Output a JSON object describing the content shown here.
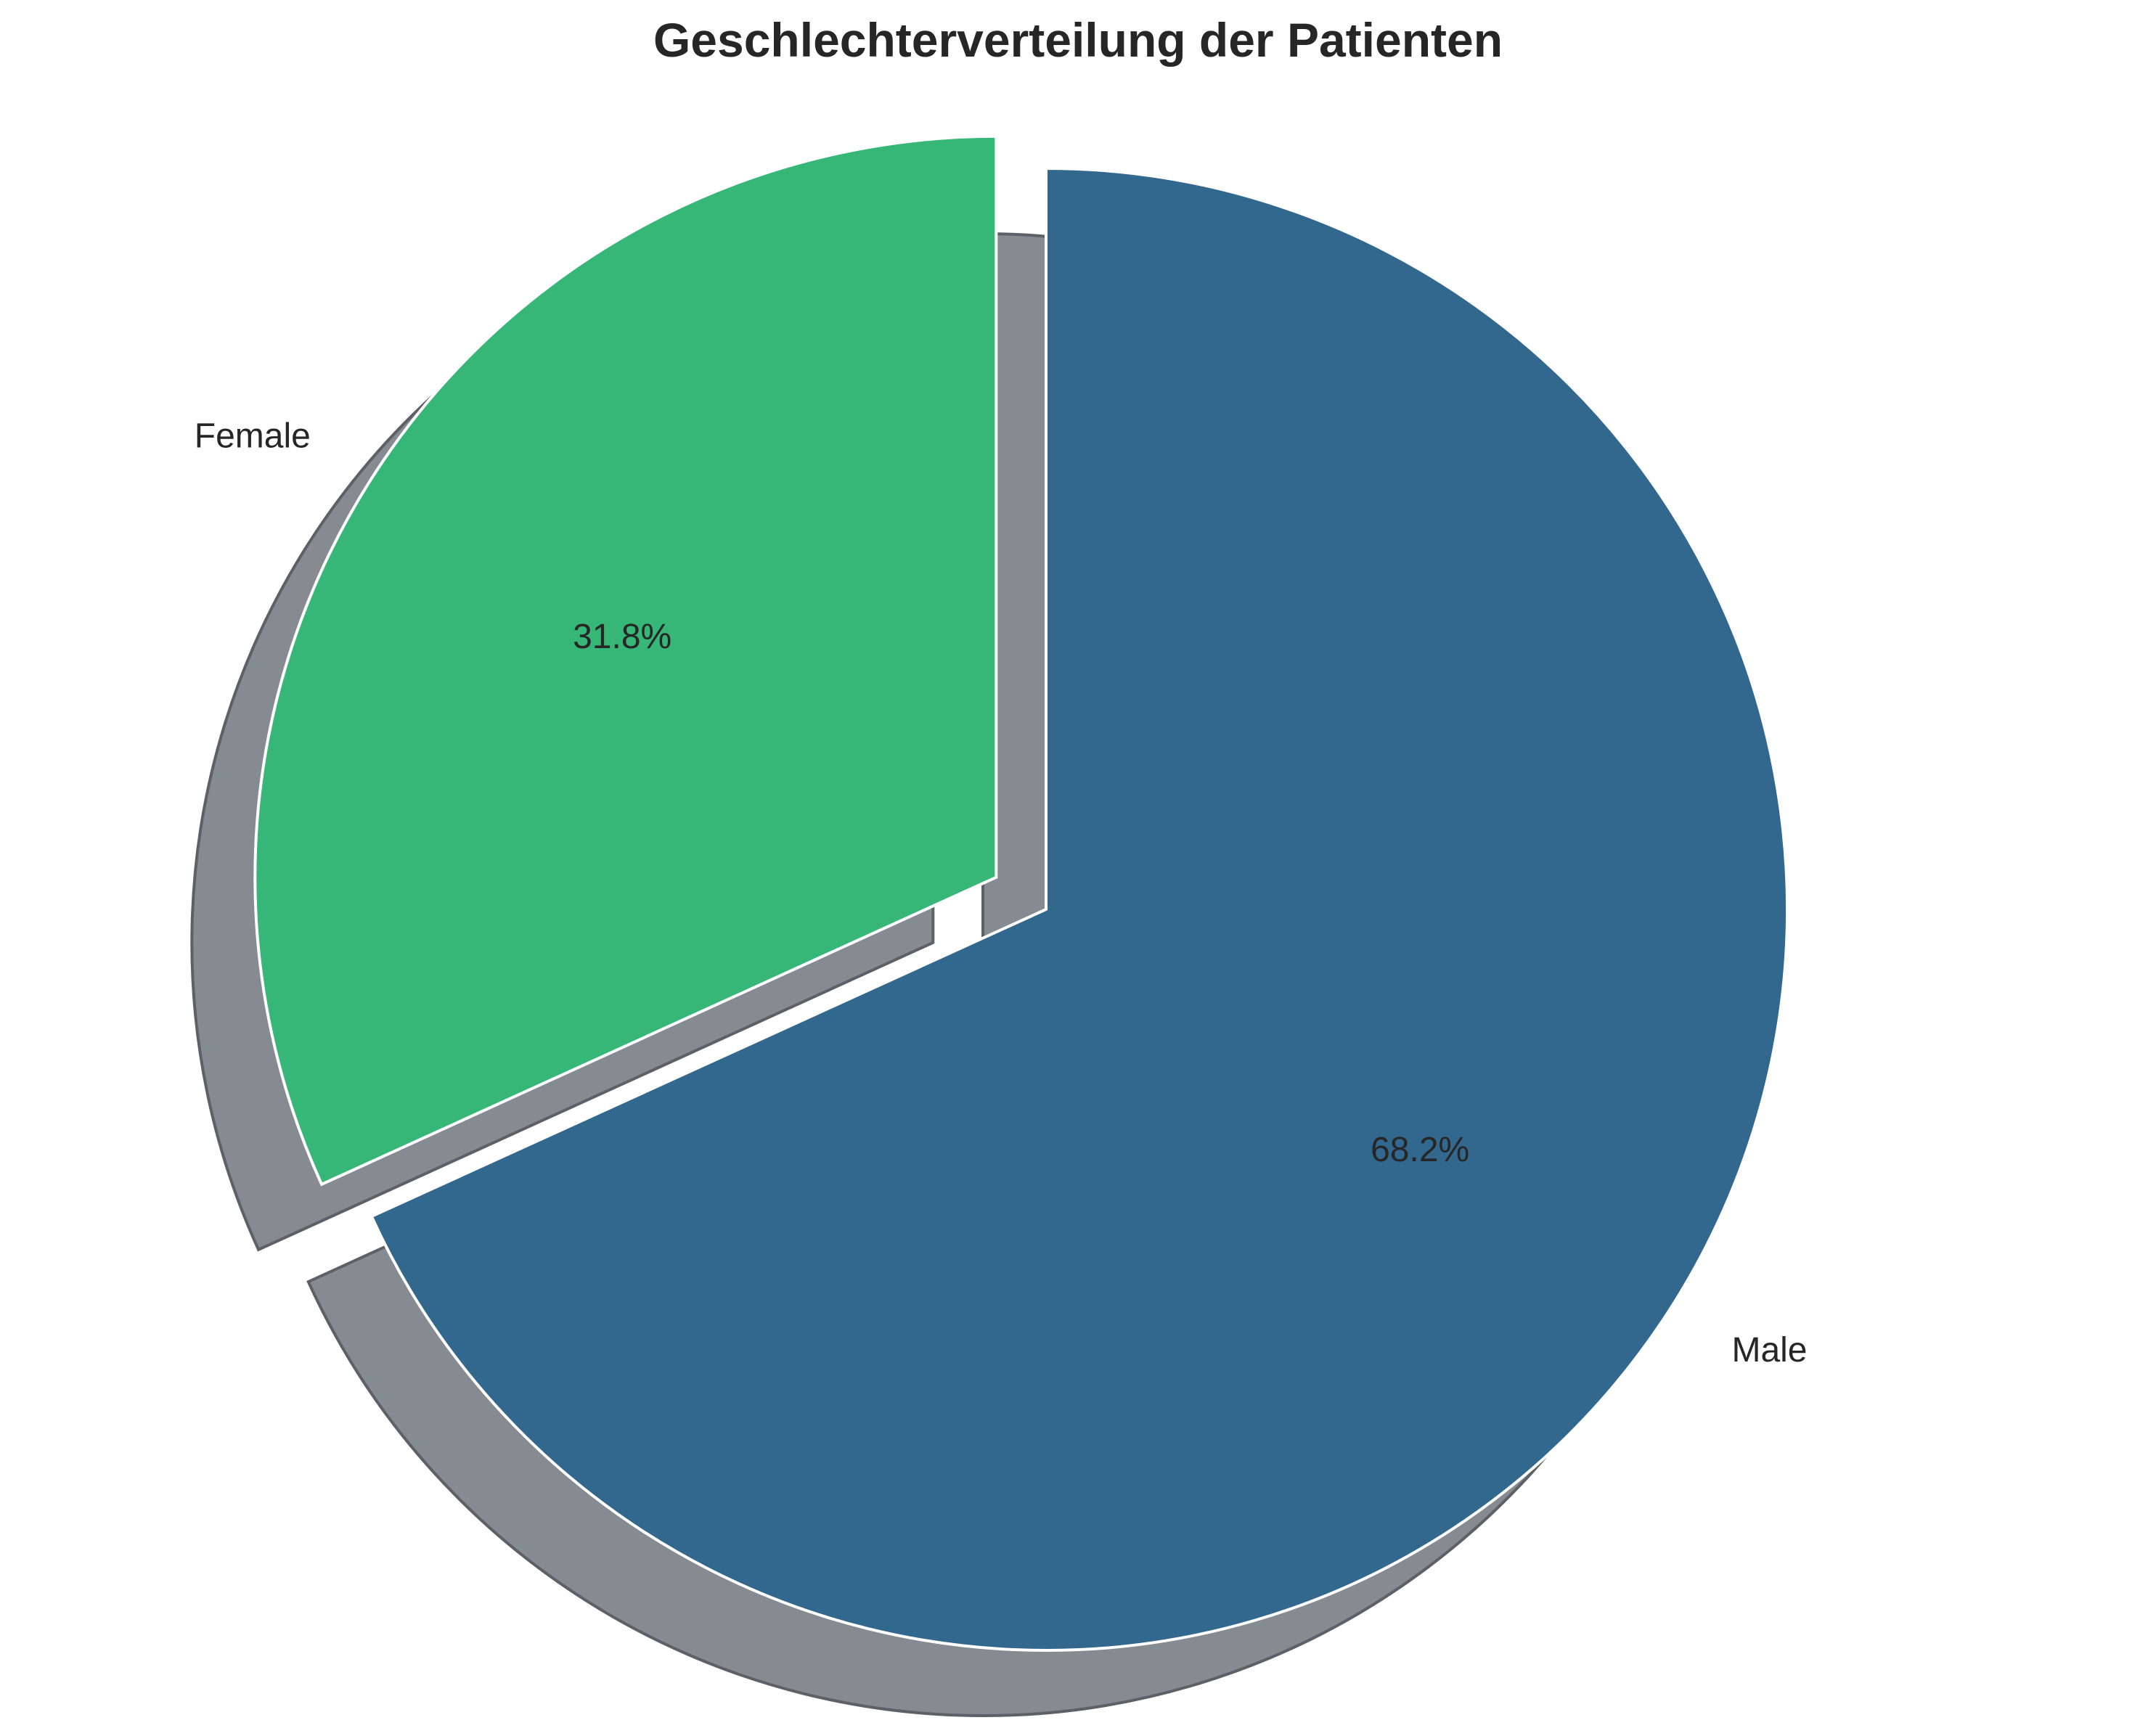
{
  "chart_data": {
    "type": "pie",
    "title": "Geschlechterverteilung der Patienten",
    "categories": [
      "Male",
      "Female"
    ],
    "values": [
      68.2,
      31.8
    ],
    "value_labels": [
      "68.2%",
      "31.8%"
    ],
    "colors": [
      "#32688d",
      "#37b777"
    ],
    "explode": [
      0,
      0.08
    ],
    "start_angle_deg": 90,
    "direction": "clockwise",
    "shadow": true,
    "slice_edge_color": "#ffffff"
  }
}
